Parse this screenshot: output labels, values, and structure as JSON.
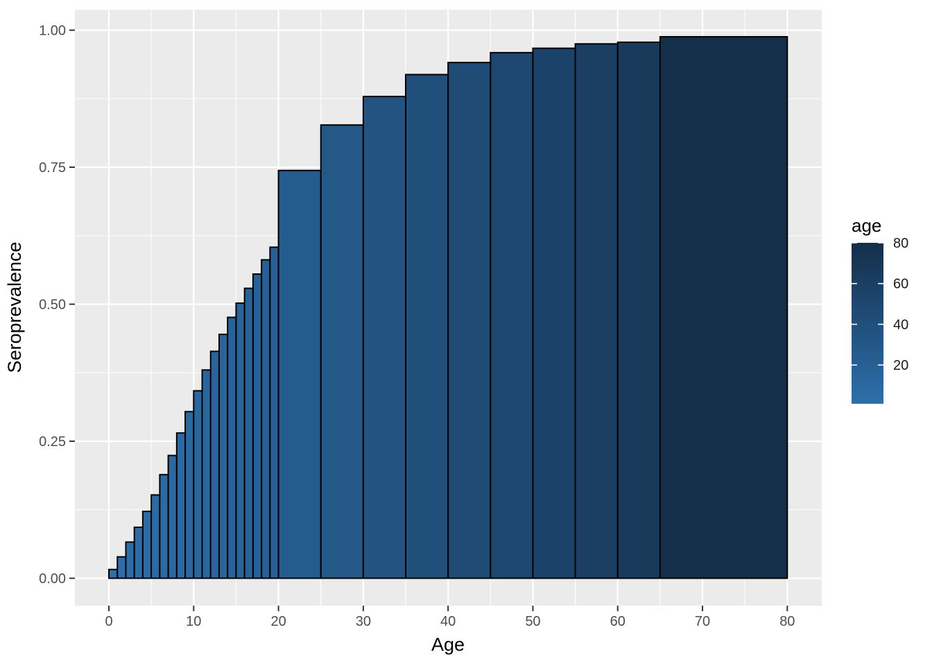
{
  "chart_data": {
    "type": "bar",
    "title": "",
    "xlabel": "Age",
    "ylabel": "Seroprevalence",
    "x_ticks": [
      0,
      10,
      20,
      30,
      40,
      50,
      60,
      70,
      80
    ],
    "x_minor_ticks": [
      5,
      15,
      25,
      35,
      45,
      55,
      65,
      75
    ],
    "y_ticks": [
      "0.00",
      "0.25",
      "0.50",
      "0.75",
      "1.00"
    ],
    "y_tick_values": [
      0,
      0.25,
      0.5,
      0.75,
      1.0
    ],
    "y_minor_tick_values": [
      0.125,
      0.375,
      0.625,
      0.875
    ],
    "xlim": [
      0,
      80
    ],
    "ylim": [
      0,
      1
    ],
    "grid": true,
    "bars": [
      {
        "x0": 0,
        "x1": 1,
        "value": 0.016
      },
      {
        "x0": 1,
        "x1": 2,
        "value": 0.039
      },
      {
        "x0": 2,
        "x1": 3,
        "value": 0.066
      },
      {
        "x0": 3,
        "x1": 4,
        "value": 0.093
      },
      {
        "x0": 4,
        "x1": 5,
        "value": 0.122
      },
      {
        "x0": 5,
        "x1": 6,
        "value": 0.152
      },
      {
        "x0": 6,
        "x1": 7,
        "value": 0.189
      },
      {
        "x0": 7,
        "x1": 8,
        "value": 0.224
      },
      {
        "x0": 8,
        "x1": 9,
        "value": 0.265
      },
      {
        "x0": 9,
        "x1": 10,
        "value": 0.304
      },
      {
        "x0": 10,
        "x1": 11,
        "value": 0.342
      },
      {
        "x0": 11,
        "x1": 12,
        "value": 0.38
      },
      {
        "x0": 12,
        "x1": 13,
        "value": 0.414
      },
      {
        "x0": 13,
        "x1": 14,
        "value": 0.445
      },
      {
        "x0": 14,
        "x1": 15,
        "value": 0.476
      },
      {
        "x0": 15,
        "x1": 16,
        "value": 0.502
      },
      {
        "x0": 16,
        "x1": 17,
        "value": 0.529
      },
      {
        "x0": 17,
        "x1": 18,
        "value": 0.555
      },
      {
        "x0": 18,
        "x1": 19,
        "value": 0.581
      },
      {
        "x0": 19,
        "x1": 20,
        "value": 0.604
      },
      {
        "x0": 20,
        "x1": 25,
        "value": 0.744
      },
      {
        "x0": 25,
        "x1": 30,
        "value": 0.827
      },
      {
        "x0": 30,
        "x1": 35,
        "value": 0.879
      },
      {
        "x0": 35,
        "x1": 40,
        "value": 0.919
      },
      {
        "x0": 40,
        "x1": 45,
        "value": 0.941
      },
      {
        "x0": 45,
        "x1": 50,
        "value": 0.959
      },
      {
        "x0": 50,
        "x1": 55,
        "value": 0.967
      },
      {
        "x0": 55,
        "x1": 60,
        "value": 0.975
      },
      {
        "x0": 60,
        "x1": 65,
        "value": 0.978
      },
      {
        "x0": 65,
        "x1": 80,
        "value": 0.988
      }
    ],
    "fill_mapping": "age (upper bound of each bar interval)",
    "legend": {
      "title": "age",
      "position": "right",
      "ticks": [
        20,
        40,
        60,
        80
      ],
      "limits": [
        1,
        80
      ]
    },
    "colors": {
      "gradient_low": "#2D6FAB",
      "gradient_high": "#132F4A",
      "bar_stroke": "#000000",
      "panel_background": "#EBEBEB",
      "gridline": "#FFFFFF",
      "axis_tick": "#333333",
      "axis_tick_label": "#4D4D4D",
      "axis_title": "#000000",
      "legend_title": "#000000",
      "legend_label": "#1A1A1A",
      "legend_tick": "#FFFFFF",
      "figure_background": "#FFFFFF"
    }
  }
}
